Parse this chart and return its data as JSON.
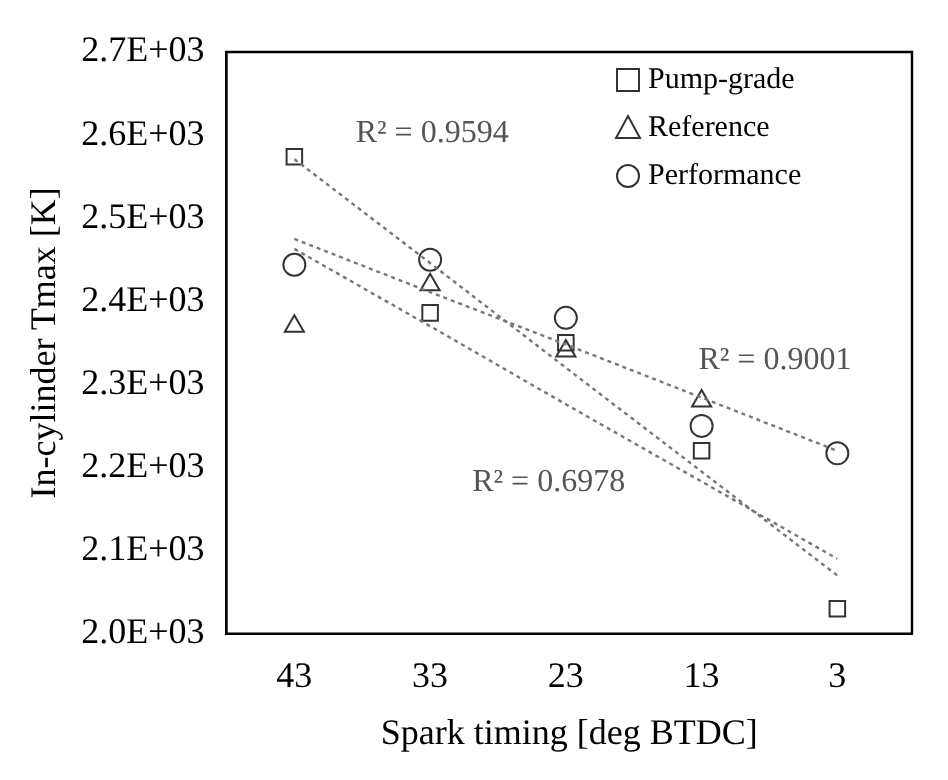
{
  "chart_data": {
    "type": "scatter",
    "xlabel": "Spark timing [deg BTDC]",
    "ylabel": "In-cylinder Tmax [K]",
    "x": [
      43,
      33,
      23,
      13,
      3
    ],
    "xlim": [
      48,
      -2.5
    ],
    "xticks": [
      43,
      33,
      23,
      13,
      3
    ],
    "ylim": [
      2000,
      2700
    ],
    "yticks": [
      {
        "value": 2000,
        "label": "2.0E+03"
      },
      {
        "value": 2100,
        "label": "2.1E+03"
      },
      {
        "value": 2200,
        "label": "2.2E+03"
      },
      {
        "value": 2300,
        "label": "2.3E+03"
      },
      {
        "value": 2400,
        "label": "2.4E+03"
      },
      {
        "value": 2500,
        "label": "2.5E+03"
      },
      {
        "value": 2600,
        "label": "2.6E+03"
      },
      {
        "value": 2700,
        "label": "2.7E+03"
      }
    ],
    "grid": false,
    "legend": "top right",
    "series": [
      {
        "name": "Pump-grade",
        "color": "#333333",
        "marker": "square",
        "values": [
          2574,
          2386,
          2350,
          2220,
          2030
        ]
      },
      {
        "name": "Reference",
        "color": "#333333",
        "marker": "triangle",
        "values": [
          2370,
          2420,
          2340,
          2280,
          null
        ]
      },
      {
        "name": "Performance",
        "color": "#333333",
        "marker": "circle",
        "values": [
          2444,
          2450,
          2380,
          2250,
          2217
        ]
      },
      {
        "type": "line",
        "color": "#777777",
        "line_style": "dotted",
        "marker": "none",
        "values": [
          2571,
          2446,
          2320,
          2195,
          2070
        ]
      },
      {
        "type": "line",
        "color": "#777777",
        "line_style": "dotted",
        "marker": "none",
        "values": [
          2463,
          2370,
          2276,
          2183,
          2090
        ]
      },
      {
        "type": "line",
        "color": "#777777",
        "line_style": "dotted",
        "marker": "none",
        "values": [
          2475,
          2411,
          2348,
          2284,
          2220
        ]
      }
    ],
    "annotations": [
      "R² = 0.9594",
      "R² = 0.9001",
      "R² = 0.6978"
    ]
  }
}
